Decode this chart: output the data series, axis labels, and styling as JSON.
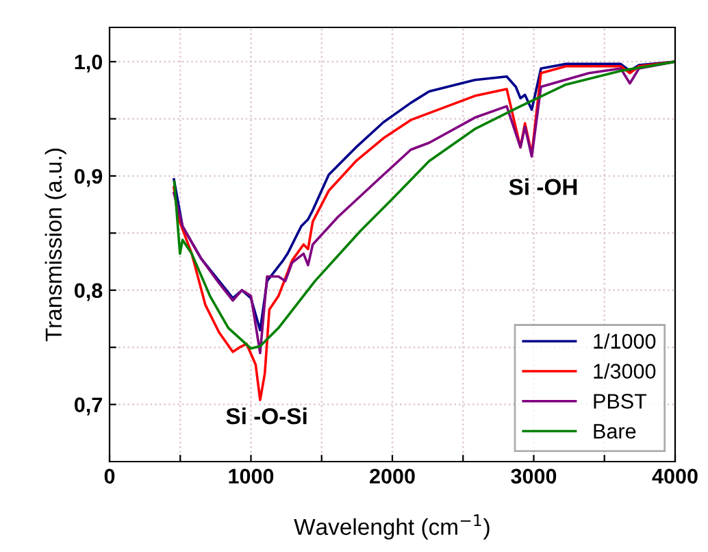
{
  "chart_data": {
    "type": "line",
    "xlabel": "Wavelenght (cm$^{−1}$)",
    "ylabel": "Transmission (a.u.)",
    "xlim": [
      0,
      4000
    ],
    "ylim": [
      0.65,
      1.03
    ],
    "xticks": [
      0,
      {
        "value": 500,
        "label": null
      },
      1000,
      {
        "value": 1500,
        "label": null
      },
      2000,
      {
        "value": 2500,
        "label": null
      },
      3000,
      {
        "value": 3500,
        "label": null
      },
      4000
    ],
    "yticks": [
      {
        "value": 0.7,
        "label": "0,7"
      },
      {
        "value": 0.75,
        "label": null
      },
      {
        "value": 0.8,
        "label": "0,8"
      },
      {
        "value": 0.85,
        "label": null
      },
      {
        "value": 0.9,
        "label": "0,9"
      },
      {
        "value": 0.95,
        "label": null
      },
      {
        "value": 1.0,
        "label": "1,0"
      }
    ],
    "grid": true,
    "legend": "bottom right",
    "marker": "none",
    "line_style": "solid",
    "annotations": [
      "Si -O-Si",
      "Si -OH"
    ],
    "series": [
      {
        "name": "1/1000",
        "color": "#00008b",
        "x": [
          455,
          516,
          646,
          775,
          872,
          936,
          1000,
          1065,
          1114,
          1227,
          1259,
          1356,
          1404,
          1437,
          1550,
          1743,
          1937,
          2131,
          2260,
          2583,
          2809,
          2873,
          2906,
          2938,
          2986,
          3051,
          3228,
          3615,
          3680,
          3744,
          4000
        ],
        "values": [
          0.897,
          0.856,
          0.828,
          0.808,
          0.793,
          0.8,
          0.793,
          0.765,
          0.808,
          0.826,
          0.832,
          0.856,
          0.862,
          0.87,
          0.901,
          0.925,
          0.947,
          0.964,
          0.974,
          0.984,
          0.987,
          0.978,
          0.968,
          0.971,
          0.958,
          0.994,
          0.998,
          0.998,
          0.992,
          0.997,
          1.0
        ]
      },
      {
        "name": "1/3000",
        "color": "#ff0000",
        "x": [
          455,
          484,
          581,
          678,
          775,
          872,
          920,
          969,
          1033,
          1065,
          1098,
          1130,
          1195,
          1291,
          1372,
          1404,
          1437,
          1550,
          1743,
          1937,
          2131,
          2583,
          2809,
          2906,
          2938,
          2986,
          3051,
          3228,
          3615,
          3680,
          3744,
          4000
        ],
        "values": [
          0.89,
          0.864,
          0.832,
          0.787,
          0.763,
          0.746,
          0.75,
          0.753,
          0.735,
          0.704,
          0.727,
          0.783,
          0.795,
          0.826,
          0.84,
          0.836,
          0.86,
          0.887,
          0.913,
          0.933,
          0.949,
          0.97,
          0.976,
          0.925,
          0.946,
          0.919,
          0.99,
          0.996,
          0.996,
          0.99,
          0.996,
          1.0
        ]
      },
      {
        "name": "PBST",
        "color": "#800080",
        "x": [
          455,
          516,
          646,
          775,
          872,
          936,
          1000,
          1065,
          1114,
          1195,
          1243,
          1291,
          1372,
          1404,
          1437,
          1614,
          1937,
          2131,
          2260,
          2583,
          2809,
          2906,
          2938,
          2986,
          3051,
          3390,
          3615,
          3680,
          3744,
          4000
        ],
        "values": [
          0.885,
          0.856,
          0.828,
          0.806,
          0.791,
          0.8,
          0.795,
          0.745,
          0.812,
          0.812,
          0.808,
          0.824,
          0.832,
          0.822,
          0.84,
          0.864,
          0.901,
          0.923,
          0.929,
          0.951,
          0.961,
          0.925,
          0.943,
          0.917,
          0.978,
          0.99,
          0.994,
          0.981,
          0.994,
          1.0
        ]
      },
      {
        "name": "Bare",
        "color": "#008000",
        "x": [
          458,
          498,
          516,
          581,
          710,
          840,
          1000,
          1065,
          1195,
          1453,
          1775,
          2001,
          2260,
          2583,
          2906,
          3228,
          3615,
          4000
        ],
        "values": [
          0.895,
          0.832,
          0.844,
          0.832,
          0.795,
          0.767,
          0.749,
          0.751,
          0.767,
          0.808,
          0.852,
          0.88,
          0.913,
          0.941,
          0.961,
          0.98,
          0.992,
          1.0
        ]
      }
    ]
  }
}
